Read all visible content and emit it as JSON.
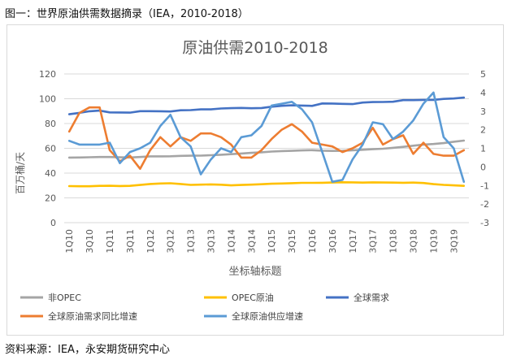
{
  "caption_top": "图一：世界原油供需数据摘录（IEA，2010-2018）",
  "caption_bottom": "资料来源：IEA，永安期货研究中心",
  "chart_data": {
    "type": "line",
    "title": "原油供需2010-2018",
    "xlabel": "坐标轴标题",
    "ylabel": "百万桶/天",
    "ylim": [
      0,
      120
    ],
    "y_ticks": [
      0,
      20,
      40,
      60,
      80,
      100,
      120
    ],
    "y2lim": [
      -3,
      5
    ],
    "y2_ticks": [
      -3,
      -2,
      -1,
      0,
      1,
      2,
      3,
      4,
      5
    ],
    "x": [
      "1Q10",
      "2Q10",
      "3Q10",
      "4Q10",
      "1Q11",
      "2Q11",
      "3Q11",
      "4Q11",
      "1Q12",
      "2Q12",
      "3Q12",
      "4Q12",
      "1Q13",
      "2Q13",
      "3Q13",
      "4Q13",
      "1Q14",
      "2Q14",
      "3Q14",
      "4Q14",
      "1Q15",
      "2Q15",
      "3Q15",
      "4Q15",
      "1Q16",
      "2Q16",
      "3Q16",
      "4Q16",
      "1Q17",
      "2Q17",
      "3Q17",
      "4Q17",
      "1Q18",
      "2Q18",
      "3Q18",
      "4Q18",
      "1Q19",
      "2Q19",
      "3Q19",
      "4Q19"
    ],
    "x_tick_labels": [
      "1Q10",
      "3Q10",
      "1Q11",
      "3Q11",
      "1Q12",
      "3Q12",
      "1Q13",
      "3Q13",
      "1Q14",
      "3Q14",
      "1Q15",
      "3Q15",
      "1Q16",
      "3Q16",
      "1Q17",
      "3Q17",
      "1Q18",
      "3Q18",
      "1Q19",
      "3Q19"
    ],
    "legend_position": "bottom",
    "grid": true,
    "series": [
      {
        "name": "非OPEC",
        "axis": "left",
        "color": "#a5a5a5",
        "values": [
          52.5,
          52.6,
          52.8,
          53.0,
          53.0,
          52.7,
          52.6,
          53.0,
          53.5,
          53.5,
          53.6,
          53.9,
          54.0,
          54.1,
          54.4,
          54.8,
          55.3,
          55.8,
          56.3,
          56.8,
          57.4,
          57.8,
          58.0,
          58.3,
          58.5,
          58.1,
          57.9,
          58.0,
          58.4,
          58.8,
          59.3,
          59.7,
          60.4,
          61.2,
          62.1,
          63.0,
          63.5,
          64.2,
          65.3,
          66.2
        ]
      },
      {
        "name": "OPEC原油",
        "axis": "left",
        "color": "#ffc000",
        "values": [
          29.5,
          29.4,
          29.4,
          29.7,
          29.8,
          29.6,
          29.7,
          30.4,
          31.2,
          31.6,
          31.8,
          31.2,
          30.5,
          30.7,
          30.9,
          30.6,
          30.1,
          30.4,
          30.7,
          31.0,
          31.4,
          31.6,
          31.9,
          32.1,
          32.1,
          32.2,
          32.4,
          32.6,
          32.5,
          32.3,
          32.5,
          32.4,
          32.3,
          32.2,
          32.3,
          32.0,
          31.1,
          30.5,
          30.1,
          29.7
        ]
      },
      {
        "name": "全球需求",
        "axis": "left",
        "color": "#4472c4",
        "values": [
          87.5,
          88.6,
          89.9,
          90.4,
          89.0,
          88.9,
          88.8,
          90.0,
          90.0,
          89.9,
          89.7,
          90.7,
          90.8,
          91.4,
          91.4,
          92.1,
          92.4,
          92.6,
          92.3,
          92.5,
          93.6,
          94.3,
          94.7,
          94.5,
          94.2,
          96.2,
          96.1,
          95.9,
          95.7,
          96.9,
          97.3,
          97.4,
          97.6,
          98.9,
          98.9,
          99.1,
          99.1,
          99.9,
          100.2,
          100.9
        ]
      },
      {
        "name": "全球原油需求同比增速",
        "axis": "right",
        "color": "#ed7d31",
        "values": [
          1.9,
          2.9,
          3.2,
          3.2,
          0.9,
          0.3,
          0.6,
          -0.1,
          0.9,
          1.6,
          1.1,
          1.6,
          1.4,
          1.8,
          1.8,
          1.6,
          1.2,
          0.5,
          0.5,
          0.9,
          1.5,
          2.0,
          2.3,
          1.9,
          1.3,
          1.2,
          1.1,
          0.8,
          1.0,
          1.3,
          2.1,
          1.2,
          1.5,
          1.7,
          0.7,
          1.3,
          0.7,
          0.6,
          0.6,
          0.9
        ]
      },
      {
        "name": "全球原油供应增速",
        "axis": "right",
        "color": "#5b9bd5",
        "values": [
          1.4,
          1.2,
          1.2,
          1.2,
          1.3,
          0.2,
          0.8,
          1.0,
          1.3,
          2.2,
          2.8,
          1.6,
          1.1,
          -0.4,
          0.4,
          1.0,
          0.8,
          1.6,
          1.7,
          2.2,
          3.3,
          3.4,
          3.5,
          3.1,
          2.4,
          0.8,
          -0.8,
          -0.7,
          0.4,
          1.2,
          2.4,
          2.3,
          1.5,
          1.9,
          2.5,
          3.4,
          4.0,
          1.6,
          1.0,
          -0.8
        ]
      }
    ]
  }
}
